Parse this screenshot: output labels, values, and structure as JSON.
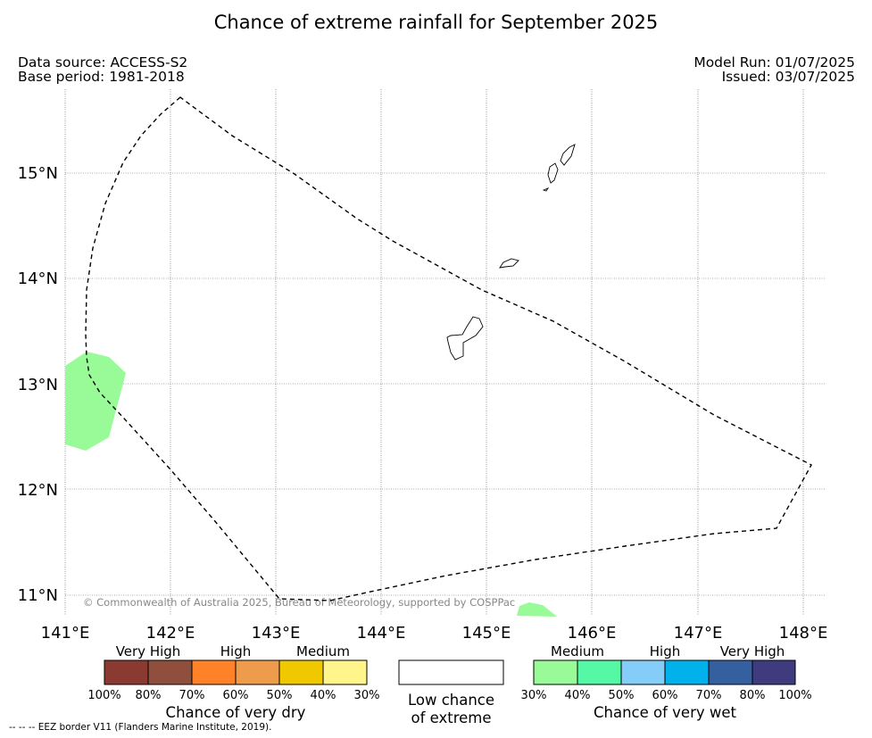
{
  "title": "Chance of extreme rainfall for September 2025",
  "meta": {
    "data_source": "Data source: ACCESS-S2",
    "base_period": "Base period: 1981-2018",
    "model_run": "Model Run: 01/07/2025",
    "issued": "Issued: 03/07/2025"
  },
  "map": {
    "copyright": "© Commonwealth of Australia 2025, Bureau of Meteorology, supported by COSPPac",
    "lat_labels": [
      "15°N",
      "14°N",
      "13°N",
      "12°N",
      "11°N"
    ],
    "lon_labels": [
      "141°E",
      "142°E",
      "143°E",
      "144°E",
      "145°E",
      "146°E",
      "147°E",
      "148°E"
    ],
    "eez_style": "dashed black line",
    "wet_area_color": "#98fb98"
  },
  "legend_dry": {
    "title": "Chance of very dry",
    "categories": [
      "Very High",
      "High",
      "Medium"
    ],
    "ticks": [
      "100%",
      "80%",
      "70%",
      "60%",
      "50%",
      "40%",
      "30%"
    ],
    "colors": [
      "#8b3a32",
      "#8f4f3c",
      "#ff8228",
      "#ee9c4c",
      "#f0c800",
      "#fff58a"
    ]
  },
  "legend_low": {
    "title": "Low chance of extreme",
    "color": "#ffffff"
  },
  "legend_wet": {
    "title": "Chance of very wet",
    "categories": [
      "Medium",
      "High",
      "Very High"
    ],
    "ticks": [
      "30%",
      "40%",
      "50%",
      "60%",
      "70%",
      "80%",
      "100%"
    ],
    "colors": [
      "#98fb98",
      "#55f8a5",
      "#85cdf9",
      "#00b1eb",
      "#3560a0",
      "#3e3c7e"
    ]
  },
  "footnote": "--  --  -- EEZ border V11 (Flanders Marine Institute, 2019)."
}
